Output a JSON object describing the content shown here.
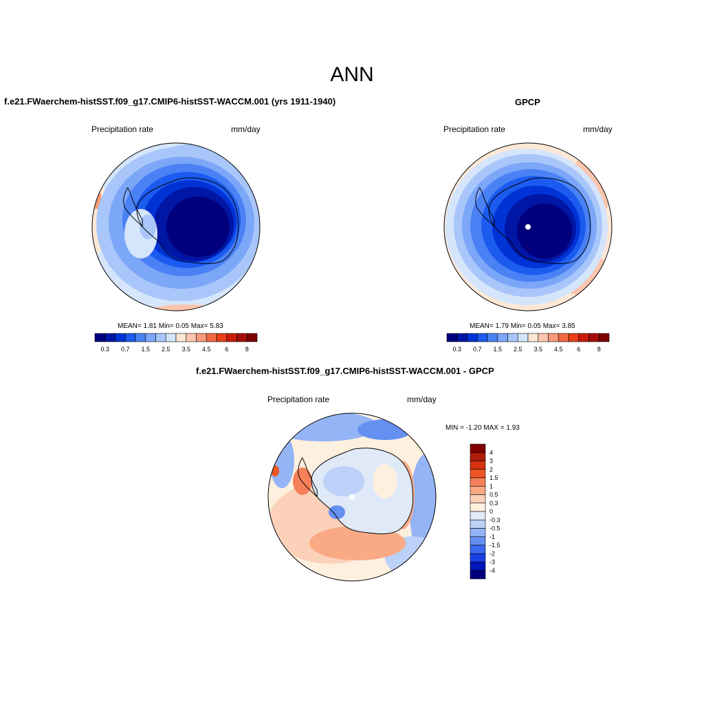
{
  "figure_title": "ANN",
  "panels": [
    {
      "title": "f.e21.FWaerchem-histSST.f09_g17.CMIP6-histSST-WACCM.001 (yrs 1911-1940)",
      "left_label": "Precipitation rate",
      "right_label": "mm/day",
      "stats": "MEAN=   1.81  Min=   0.05  Max=   5.83"
    },
    {
      "title": "GPCP",
      "left_label": "Precipitation rate",
      "right_label": "mm/day",
      "stats": "MEAN=   1.79  Min=   0.05  Max=   3.85"
    },
    {
      "title": "f.e21.FWaerchem-histSST.f09_g17.CMIP6-histSST-WACCM.001 - GPCP",
      "left_label": "Precipitation rate",
      "right_label": "mm/day",
      "stats": "MIN =  -1.20 MAX =   1.93"
    }
  ],
  "abs_colorbar": {
    "colors": [
      "#00007f",
      "#0016a4",
      "#0033d6",
      "#1b5bf0",
      "#4a82f5",
      "#7ca7f8",
      "#a9c6fa",
      "#d5e5fb",
      "#fde8d6",
      "#fcc5ad",
      "#f99b7a",
      "#f36a42",
      "#e8401a",
      "#c81d0a",
      "#a60d06",
      "#7d0000"
    ],
    "tick_labels": [
      "0.3",
      "0.7",
      "1.5",
      "2.5",
      "3.5",
      "4.5",
      "6",
      "8"
    ]
  },
  "diff_colorbar": {
    "colors": [
      "#7f0000",
      "#b01c0a",
      "#d63211",
      "#ef5524",
      "#f6805a",
      "#f9aa85",
      "#fcd1b9",
      "#fdf0df",
      "#dfe9f8",
      "#bcd1f7",
      "#94b4f5",
      "#6590f2",
      "#3a6aef",
      "#1740e5",
      "#0016b8",
      "#00007f"
    ],
    "tick_labels": [
      "4",
      "3",
      "2",
      "1.5",
      "1",
      "0.5",
      "0.3",
      "0",
      "-0.3",
      "-0.5",
      "-1",
      "-1.5",
      "-2",
      "-3",
      "-4"
    ]
  }
}
